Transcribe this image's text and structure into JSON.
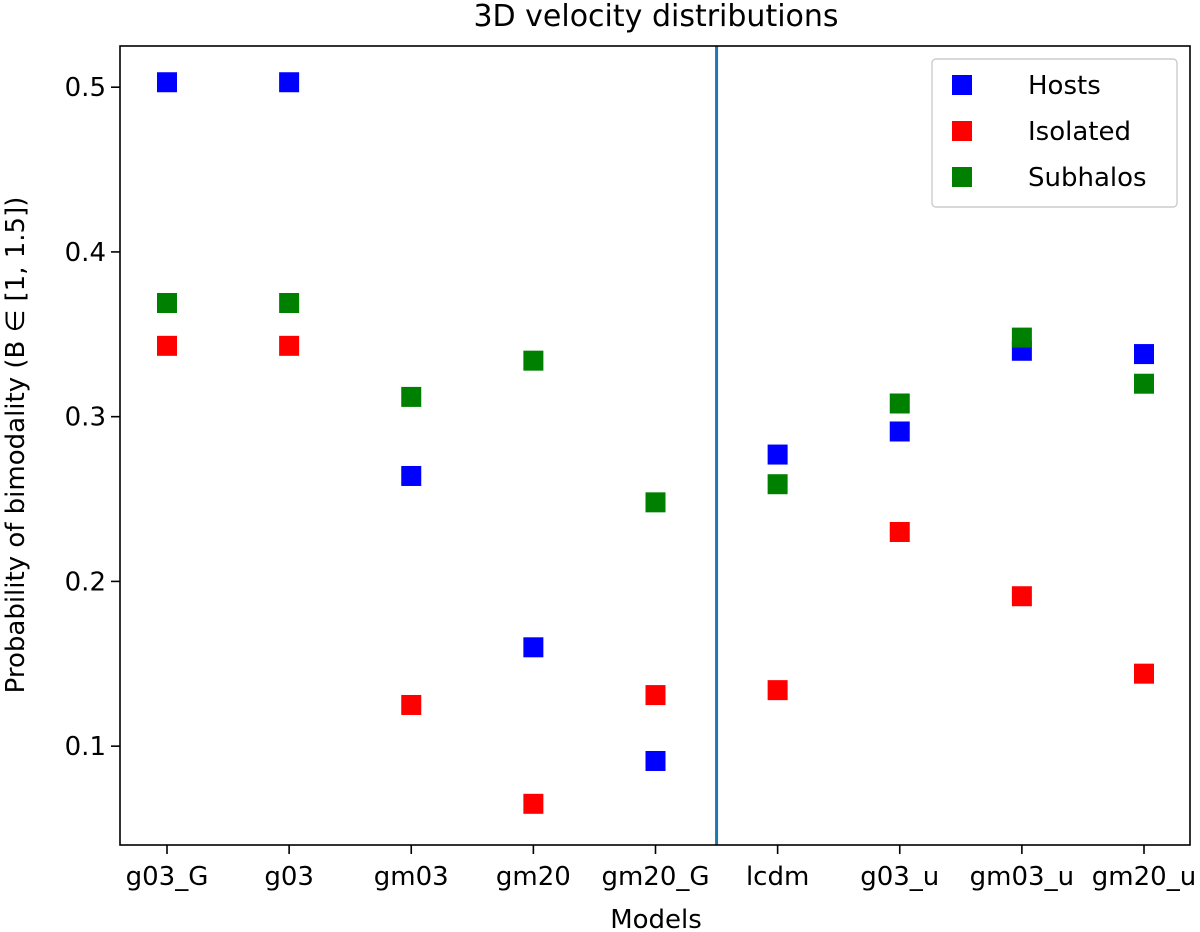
{
  "chart_data": {
    "type": "scatter",
    "title": "3D velocity distributions",
    "xlabel": "Models",
    "ylabel": "Probability of bimodality (B ∈ [1, 1.5])",
    "categories": [
      "g03_G",
      "g03",
      "gm03",
      "gm20",
      "gm20_G",
      "lcdm",
      "g03_u",
      "gm03_u",
      "gm20_u"
    ],
    "yticks": [
      "0.1",
      "0.2",
      "0.3",
      "0.4",
      "0.5"
    ],
    "ytick_values": [
      0.1,
      0.2,
      0.3,
      0.4,
      0.5
    ],
    "ylim": [
      0.04,
      0.525
    ],
    "divider_between": [
      "gm20_G",
      "lcdm"
    ],
    "divider_color": "#1f77b4",
    "grid": false,
    "legend_position": "top-right",
    "series": [
      {
        "name": "Hosts",
        "color": "#0000ff",
        "values": [
          0.503,
          0.503,
          0.264,
          0.16,
          0.091,
          0.277,
          0.291,
          0.34,
          0.338
        ]
      },
      {
        "name": "Isolated",
        "color": "#ff0000",
        "values": [
          0.343,
          0.343,
          0.125,
          0.065,
          0.131,
          0.134,
          0.23,
          0.191,
          0.144
        ]
      },
      {
        "name": "Subhalos",
        "color": "#008000",
        "values": [
          0.369,
          0.369,
          0.312,
          0.334,
          0.248,
          0.259,
          0.308,
          0.348,
          0.32
        ]
      }
    ]
  }
}
